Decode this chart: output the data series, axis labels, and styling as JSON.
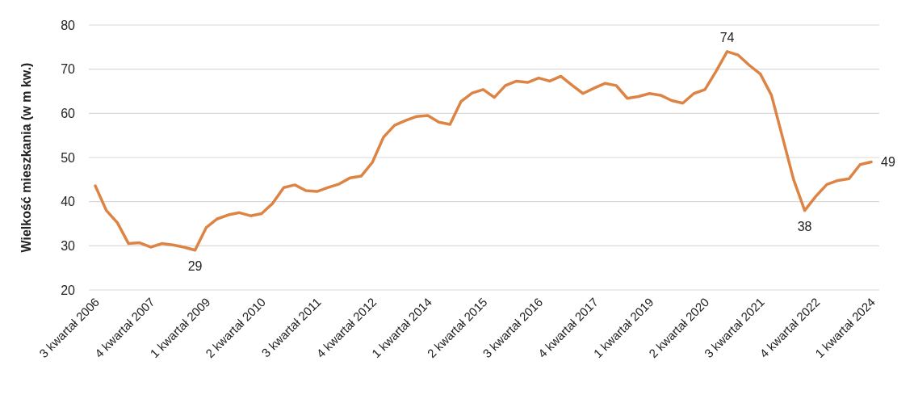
{
  "chart_data": {
    "type": "line",
    "ylabel": "Wielkość mieszkania (w m kw.)",
    "categories": [
      "3 kwartał 2006",
      null,
      null,
      null,
      null,
      "4 kwartał 2007",
      null,
      null,
      null,
      null,
      "1 kwartał 2009",
      null,
      null,
      null,
      null,
      "2 kwartał 2010",
      null,
      null,
      null,
      null,
      "3 kwartał 2011",
      null,
      null,
      null,
      null,
      "4 kwartał 2012",
      null,
      null,
      null,
      null,
      "1 kwartał 2014",
      null,
      null,
      null,
      null,
      "2 kwartał 2015",
      null,
      null,
      null,
      null,
      "3 kwartał 2016",
      null,
      null,
      null,
      null,
      "4 kwartał 2017",
      null,
      null,
      null,
      null,
      "1 kwartał 2019",
      null,
      null,
      null,
      null,
      "2 kwartał 2020",
      null,
      null,
      null,
      null,
      "3 kwartał 2021",
      null,
      null,
      null,
      null,
      "4 kwartał 2022",
      null,
      null,
      null,
      null,
      "1 kwartał 2024"
    ],
    "series": [
      {
        "color": "#dd8444",
        "values": [
          43.6,
          38,
          35.2,
          30.5,
          30.7,
          29.7,
          30.5,
          30.2,
          29.7,
          29,
          34.1,
          36.1,
          37,
          37.5,
          36.8,
          37.3,
          39.6,
          43.2,
          43.8,
          42.5,
          42.3,
          43.2,
          44,
          45.4,
          45.8,
          48.9,
          54.6,
          57.3,
          58.4,
          59.3,
          59.5,
          58,
          57.5,
          62.7,
          64.6,
          65.4,
          63.6,
          66.3,
          67.3,
          67,
          68,
          67.3,
          68.4,
          66.4,
          64.5,
          65.7,
          66.8,
          66.3,
          63.4,
          63.8,
          64.5,
          64.1,
          62.9,
          62.3,
          64.5,
          65.4,
          69.5,
          74,
          73.2,
          70.9,
          68.9,
          64.1,
          54.6,
          45,
          38,
          41.2,
          43.9,
          44.8,
          45.2,
          48.4,
          49
        ],
        "value_labels": [
          null,
          null,
          null,
          null,
          null,
          null,
          null,
          null,
          null,
          "29",
          null,
          null,
          null,
          null,
          null,
          null,
          null,
          null,
          null,
          null,
          null,
          null,
          null,
          null,
          null,
          null,
          null,
          null,
          null,
          null,
          null,
          null,
          null,
          null,
          null,
          null,
          null,
          null,
          null,
          null,
          null,
          null,
          null,
          null,
          null,
          null,
          null,
          null,
          null,
          null,
          null,
          null,
          null,
          null,
          null,
          null,
          null,
          "74",
          null,
          null,
          null,
          null,
          null,
          null,
          "38",
          null,
          null,
          null,
          null,
          null,
          "49"
        ]
      }
    ],
    "ylim": [
      20,
      80
    ],
    "yticks": [
      20,
      30,
      40,
      50,
      60,
      70,
      80
    ],
    "grid": "y",
    "marker": "none",
    "line_style": "solid"
  }
}
